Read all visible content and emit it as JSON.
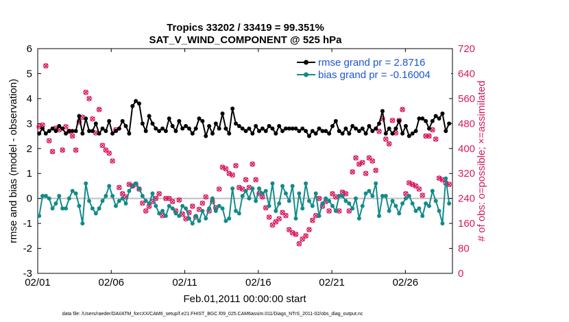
{
  "colors": {
    "rmse": "#000000",
    "bias": "#138a8a",
    "obs": "#d6185e",
    "legend_text": "#1a55d8",
    "zero_line": "#bfbfbf"
  },
  "chart_data": {
    "type": "line",
    "title": "Tropics 33202 / 33419 = 99.351%",
    "subtitle": "SAT_V_WIND_COMPONENT @ 525 hPa",
    "xlabel": "Feb.01,2011 00:00:00 start",
    "ylabel": "rmse and bias (model - observation)",
    "ylabel_right": "# of obs: o=possible; ×=assimilated",
    "x_ticks": [
      "02/01",
      "02/06",
      "02/11",
      "02/16",
      "02/21",
      "02/26"
    ],
    "x_tick_days": [
      0,
      5,
      10,
      15,
      20,
      25
    ],
    "xlim": [
      0,
      28.2
    ],
    "ylim": [
      -3,
      6
    ],
    "y_ticks": [
      "-3",
      "-2",
      "-1",
      "0",
      "1",
      "2",
      "3",
      "4",
      "5",
      "6"
    ],
    "ylim_right": [
      0,
      720
    ],
    "y_ticks_right": [
      "0",
      "80",
      "160",
      "240",
      "320",
      "400",
      "480",
      "560",
      "640",
      "720"
    ],
    "x_step_days": 0.25,
    "legend": [
      "rmse grand pr = 2.8716",
      "bias grand pr = -0.16004"
    ],
    "legend_position": "top-right",
    "series": [
      {
        "name": "rmse grand pr = 2.8716",
        "color": "#000000",
        "marker": "filled circle",
        "axis": "left",
        "values": [
          2.6,
          2.8,
          2.6,
          2.7,
          2.8,
          2.7,
          2.9,
          2.8,
          2.6,
          2.7,
          2.7,
          2.7,
          3.3,
          2.6,
          3.2,
          2.7,
          2.7,
          3.0,
          2.6,
          2.8,
          2.7,
          3.1,
          2.6,
          2.7,
          2.8,
          3.1,
          2.9,
          2.6,
          3.7,
          3.9,
          3.8,
          3.0,
          2.7,
          3.3,
          3.0,
          2.8,
          2.7,
          2.8,
          2.7,
          3.2,
          2.9,
          2.7,
          3.1,
          2.8,
          2.9,
          2.8,
          2.6,
          2.8,
          3.2,
          3.1,
          2.5,
          2.9,
          2.6,
          3.0,
          2.8,
          3.4,
          2.8,
          2.6,
          3.6,
          3.0,
          2.9,
          2.8,
          2.7,
          2.8,
          2.6,
          2.9,
          2.7,
          2.8,
          2.7,
          2.9,
          2.8,
          2.6,
          2.9,
          2.7,
          2.8,
          2.8,
          2.8,
          2.8,
          2.7,
          2.8,
          2.7,
          2.5,
          2.7,
          2.6,
          2.8,
          2.7,
          2.7,
          2.6,
          2.9,
          3.1,
          2.7,
          2.6,
          2.8,
          2.6,
          2.9,
          2.8,
          2.7,
          2.8,
          2.6,
          2.9,
          2.7,
          2.8,
          3.0,
          3.5,
          2.6,
          2.8,
          2.6,
          2.8,
          3.1,
          2.6,
          2.9,
          2.5,
          2.6,
          2.7,
          3.2,
          3.2,
          3.1,
          2.8,
          3.1,
          3.3,
          3.2,
          3.4,
          2.7,
          3.0
        ],
        "values_estimated_note": "read from gridlines"
      },
      {
        "name": "bias grand pr = -0.16004",
        "color": "#138a8a",
        "marker": "filled circle",
        "axis": "left",
        "values": [
          -0.7,
          0.1,
          0.1,
          0.0,
          -0.4,
          -0.2,
          0.1,
          -0.4,
          -0.4,
          0.0,
          0.3,
          0.2,
          -0.3,
          -1.0,
          0.6,
          -0.1,
          -0.4,
          -0.6,
          -0.4,
          -0.1,
          0.1,
          0.5,
          0.1,
          -0.3,
          -0.1,
          0.0,
          -0.2,
          0.3,
          0.5,
          0.6,
          0.4,
          0.1,
          -0.1,
          -0.2,
          0.2,
          -0.3,
          -0.6,
          -0.5,
          -0.7,
          -0.3,
          -0.4,
          -0.6,
          -0.7,
          -0.3,
          -0.4,
          -0.8,
          -1.0,
          -0.7,
          -0.9,
          -0.5,
          -0.8,
          -0.4,
          0.0,
          -0.5,
          -0.3,
          -0.4,
          -0.9,
          -0.8,
          0.4,
          -0.5,
          -0.6,
          0.1,
          0.3,
          0.0,
          0.4,
          -0.1,
          0.4,
          0.2,
          0.3,
          -0.3,
          0.6,
          -0.5,
          -0.2,
          0.5,
          0.2,
          -0.1,
          0.5,
          -0.8,
          0.2,
          -0.4,
          0.6,
          -0.1,
          -0.3,
          0.2,
          -0.7,
          -0.2,
          0.0,
          -0.1,
          -0.3,
          -0.5,
          0.1,
          0.1,
          -0.1,
          -0.2,
          -0.4,
          0.0,
          -0.8,
          -0.3,
          0.2,
          0.3,
          0.1,
          0.6,
          -0.7,
          0.1,
          0.1,
          -0.5,
          -0.1,
          -0.3,
          -0.6,
          -0.2,
          0.0,
          0.1,
          -0.2,
          -0.5,
          -0.4,
          -0.7,
          -0.2,
          -0.3,
          0.3,
          -0.1,
          -0.5,
          -1.0,
          0.8,
          -0.2
        ],
        "values_estimated_note": "read from gridlines"
      },
      {
        "name": "# of obs (assimilated/possible)",
        "color": "#d6185e",
        "marker": "x and o overlaid",
        "axis": "right",
        "values": [
          470,
          475,
          665,
          425,
          390,
          465,
          460,
          395,
          470,
          455,
          440,
          395,
          485,
          500,
          580,
          560,
          495,
          450,
          525,
          410,
          395,
          385,
          360,
          460,
          275,
          255,
          245,
          285,
          280,
          285,
          270,
          225,
          200,
          215,
          230,
          240,
          255,
          185,
          240,
          240,
          230,
          200,
          235,
          190,
          175,
          195,
          215,
          180,
          205,
          225,
          245,
          200,
          230,
          210,
          270,
          340,
          335,
          320,
          315,
          345,
          275,
          270,
          300,
          275,
          350,
          300,
          255,
          245,
          210,
          180,
          155,
          165,
          175,
          195,
          185,
          140,
          130,
          125,
          95,
          110,
          120,
          140,
          170,
          185,
          240,
          215,
          230,
          200,
          255,
          245,
          200,
          260,
          255,
          200,
          325,
          370,
          350,
          355,
          320,
          370,
          360,
          330,
          455,
          495,
          430,
          415,
          490,
          450,
          490,
          525,
          255,
          290,
          285,
          280,
          270,
          250,
          440,
          440,
          460,
          430,
          305,
          300,
          290,
          285
        ]
      }
    ],
    "footnote": "data file: /Users/raeder/DAI/ATM_forcXX/CAM6_setup/f.e21.FHIST_BGC.f09_025.CAM6assim.011/Diags_NTrS_2011-02/obs_diag_output.nc"
  }
}
